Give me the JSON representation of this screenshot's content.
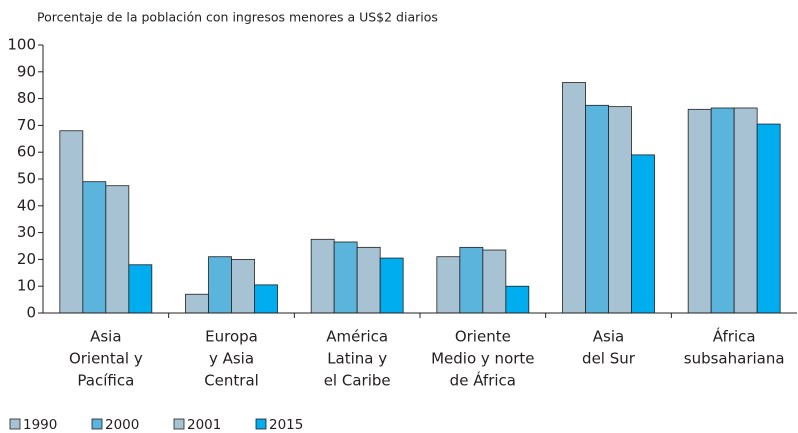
{
  "chart_data": {
    "type": "bar",
    "title": "Porcentaje de la población con ingresos menores a US$2 diarios",
    "categories": [
      [
        "Asia",
        "Oriental y",
        "Pacífica"
      ],
      [
        "Europa",
        "y Asia",
        "Central"
      ],
      [
        "América",
        "Latina y",
        "el Caribe"
      ],
      [
        "Oriente",
        "Medio y norte",
        "de África"
      ],
      [
        "Asia",
        "del Sur"
      ],
      [
        "África",
        "subsahariana"
      ]
    ],
    "series": [
      {
        "name": "1990",
        "color": "#a7c3d3",
        "values": [
          68,
          7,
          27.5,
          21,
          86,
          76
        ]
      },
      {
        "name": "2000",
        "color": "#5ab4dc",
        "values": [
          49,
          21,
          26.5,
          24.5,
          77.5,
          76.5
        ]
      },
      {
        "name": "2001",
        "color": "#a7c3d3",
        "values": [
          47.5,
          20,
          24.5,
          23.5,
          77,
          76.5
        ]
      },
      {
        "name": "2015",
        "color": "#00aeef",
        "values": [
          18,
          10.5,
          20.5,
          10,
          59,
          70.5
        ]
      }
    ],
    "ylim": [
      0,
      100
    ],
    "yticks": [
      0,
      10,
      20,
      30,
      40,
      50,
      60,
      70,
      80,
      90,
      100
    ],
    "legend": "bottom-left"
  }
}
